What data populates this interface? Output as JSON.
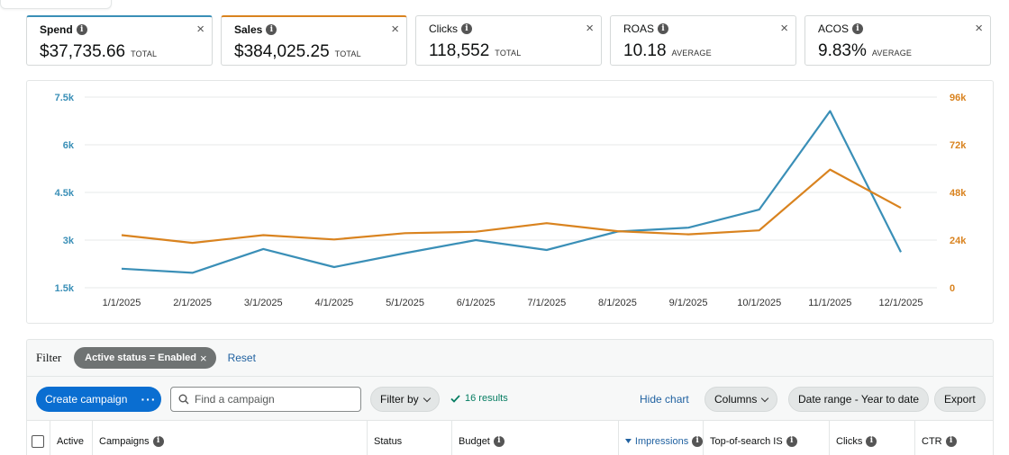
{
  "metric_cards": [
    {
      "label": "Spend",
      "value": "$37,735.66",
      "suffix": "TOTAL",
      "selected": true,
      "color": "#3a8fb7"
    },
    {
      "label": "Sales",
      "value": "$384,025.25",
      "suffix": "TOTAL",
      "selected": true,
      "color": "#d9831f"
    },
    {
      "label": "Clicks",
      "value": "118,552",
      "suffix": "TOTAL",
      "selected": false
    },
    {
      "label": "ROAS",
      "value": "10.18",
      "suffix": "AVERAGE",
      "selected": false
    },
    {
      "label": "ACOS",
      "value": "9.83%",
      "suffix": "AVERAGE",
      "selected": false
    }
  ],
  "close_glyph": "×",
  "info_glyph": "i",
  "chart_data": {
    "type": "line",
    "x": [
      "1/1/2025",
      "2/1/2025",
      "3/1/2025",
      "4/1/2025",
      "5/1/2025",
      "6/1/2025",
      "7/1/2025",
      "8/1/2025",
      "9/1/2025",
      "10/1/2025",
      "11/1/2025",
      "12/1/2025"
    ],
    "series": [
      {
        "axis": "left",
        "color": "#3a8fb7",
        "values": [
          2100,
          1970,
          2720,
          2150,
          2590,
          3000,
          2690,
          3270,
          3390,
          3960,
          7060,
          2620
        ]
      },
      {
        "axis": "right",
        "color": "#d9831f",
        "values": [
          26500,
          22600,
          26500,
          24300,
          27500,
          28200,
          32500,
          28500,
          26900,
          28900,
          59500,
          40200
        ]
      }
    ],
    "y_left": {
      "min": 1500,
      "max": 7500,
      "ticks": [
        "1.5k",
        "3k",
        "4.5k",
        "6k",
        "7.5k"
      ],
      "tick_values": [
        1500,
        3000,
        4500,
        6000,
        7500
      ],
      "color": "#3a8fb7"
    },
    "y_right": {
      "min": 0,
      "max": 96000,
      "ticks": [
        "0",
        "24k",
        "48k",
        "72k",
        "96k"
      ],
      "tick_values": [
        0,
        24000,
        48000,
        72000,
        96000
      ],
      "color": "#d9831f"
    },
    "grid": true,
    "legend": "none"
  },
  "filter": {
    "label": "Filter",
    "chip": "Active status = Enabled",
    "chip_close": "×",
    "reset": "Reset"
  },
  "toolbar": {
    "create": "Create campaign",
    "more": "···",
    "search_placeholder": "Find a campaign",
    "filter_by": "Filter by",
    "results": "16 results",
    "hide_chart": "Hide chart",
    "columns": "Columns",
    "date_range": "Date range - Year to date",
    "export": "Export"
  },
  "columns": [
    {
      "label": "Active",
      "info": false
    },
    {
      "label": "Campaigns",
      "info": true
    },
    {
      "label": "Status",
      "info": false
    },
    {
      "label": "Budget",
      "info": true
    },
    {
      "label": "Impressions",
      "info": true,
      "sorted": true
    },
    {
      "label": "Top-of-search IS",
      "info": true
    },
    {
      "label": "Clicks",
      "info": true
    },
    {
      "label": "CTR",
      "info": true
    }
  ]
}
